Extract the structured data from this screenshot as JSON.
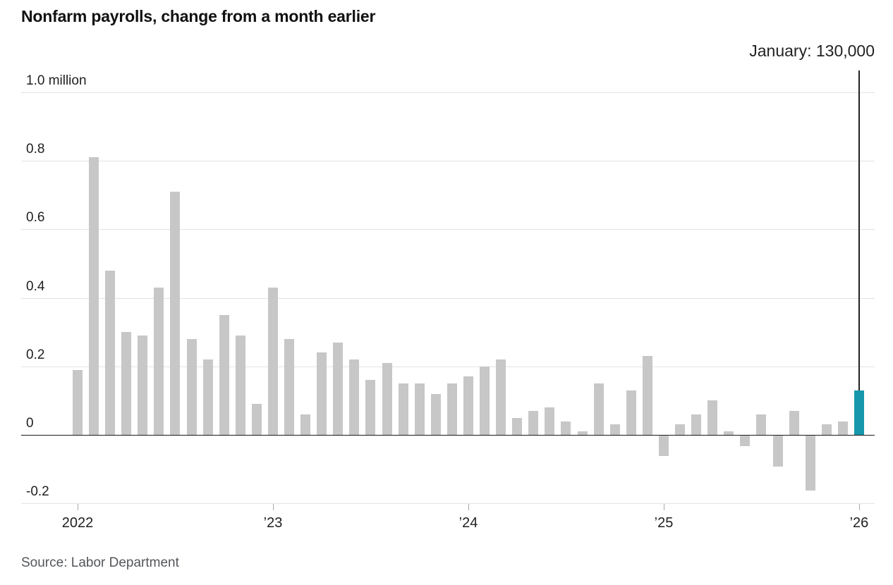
{
  "header": {
    "title": "Nonfarm payrolls, change from a month earlier"
  },
  "annotation": {
    "label": "January: 130,000"
  },
  "source": {
    "text": "Source: Labor Department"
  },
  "colors": {
    "bar": "#c7c7c7",
    "highlight": "#1697ab",
    "grid": "#e3e3e3",
    "zero_line": "#1a1a1a",
    "callout_line": "#222222"
  },
  "chart_data": {
    "type": "bar",
    "title": "Nonfarm payrolls, change from a month earlier",
    "unit": "million",
    "ylim": [
      -0.2,
      1.0
    ],
    "grid": true,
    "yticks": [
      {
        "value": 1.0,
        "label": "1.0 million"
      },
      {
        "value": 0.8,
        "label": "0.8"
      },
      {
        "value": 0.6,
        "label": "0.6"
      },
      {
        "value": 0.4,
        "label": "0.4"
      },
      {
        "value": 0.2,
        "label": "0.2"
      },
      {
        "value": 0,
        "label": "0"
      },
      {
        "value": -0.2,
        "label": "-0.2"
      }
    ],
    "xticks": [
      {
        "index": 0,
        "label": "2022"
      },
      {
        "index": 12,
        "label": "’23"
      },
      {
        "index": 24,
        "label": "’24"
      },
      {
        "index": 36,
        "label": "’25"
      },
      {
        "index": 48,
        "label": "’26"
      }
    ],
    "x": [
      "Jan 2022",
      "Feb 2022",
      "Mar 2022",
      "Apr 2022",
      "May 2022",
      "Jun 2022",
      "Jul 2022",
      "Aug 2022",
      "Sep 2022",
      "Oct 2022",
      "Nov 2022",
      "Dec 2022",
      "Jan 2023",
      "Feb 2023",
      "Mar 2023",
      "Apr 2023",
      "May 2023",
      "Jun 2023",
      "Jul 2023",
      "Aug 2023",
      "Sep 2023",
      "Oct 2023",
      "Nov 2023",
      "Dec 2023",
      "Jan 2024",
      "Feb 2024",
      "Mar 2024",
      "Apr 2024",
      "May 2024",
      "Jun 2024",
      "Jul 2024",
      "Aug 2024",
      "Sep 2024",
      "Oct 2024",
      "Nov 2024",
      "Dec 2024",
      "Jan 2025",
      "Feb 2025",
      "Mar 2025",
      "Apr 2025",
      "May 2025",
      "Jun 2025",
      "Jul 2025",
      "Aug 2025",
      "Sep 2025",
      "Oct 2025",
      "Nov 2025",
      "Dec 2025",
      "Jan 2026"
    ],
    "values": [
      0.19,
      0.81,
      0.48,
      0.3,
      0.29,
      0.43,
      0.71,
      0.28,
      0.22,
      0.35,
      0.29,
      0.09,
      0.43,
      0.28,
      0.06,
      0.24,
      0.27,
      0.22,
      0.16,
      0.21,
      0.15,
      0.15,
      0.12,
      0.15,
      0.17,
      0.2,
      0.22,
      0.05,
      0.07,
      0.08,
      0.04,
      0.01,
      0.15,
      0.03,
      0.13,
      0.23,
      -0.06,
      0.03,
      0.06,
      0.1,
      0.01,
      -0.03,
      0.06,
      -0.09,
      0.07,
      -0.16,
      0.03,
      0.04,
      0.13
    ],
    "highlight_index": 48,
    "highlight_label": "January: 130,000",
    "highlight_value_text": "130,000"
  }
}
